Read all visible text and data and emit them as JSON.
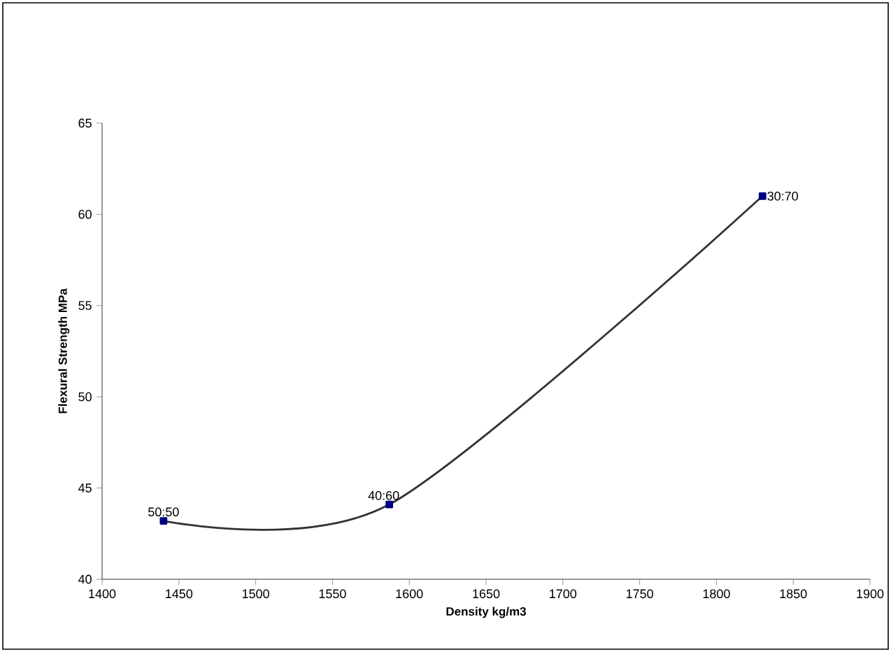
{
  "chart_data": {
    "type": "line",
    "xlabel": "Density kg/m3",
    "ylabel": "Flexural Strength MPa",
    "x": [
      1440,
      1587,
      1830
    ],
    "series": [
      {
        "color": "#000080",
        "values": [
          43.2,
          44.1,
          61.0
        ]
      }
    ],
    "xlim": [
      1400,
      1900
    ],
    "xticks": [
      1400,
      1450,
      1500,
      1550,
      1600,
      1650,
      1700,
      1750,
      1800,
      1850,
      1900
    ],
    "ylim": [
      40,
      65
    ],
    "yticks": [
      40,
      45,
      50,
      55,
      60,
      65
    ],
    "marker": "square",
    "line_style": "solid",
    "annotations": [
      {
        "text": "50:50",
        "x": 1440,
        "y": 43.2
      },
      {
        "text": "40:60",
        "x": 1587,
        "y": 44.1
      },
      {
        "text": "30:70",
        "x": 1830,
        "y": 61.0
      }
    ]
  }
}
